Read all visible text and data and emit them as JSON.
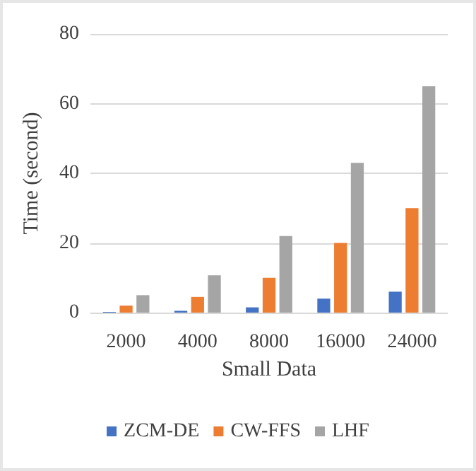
{
  "chart_data": {
    "type": "bar",
    "xlabel": "Small Data",
    "ylabel": "Time (second)",
    "categories": [
      "2000",
      "4000",
      "8000",
      "16000",
      "24000"
    ],
    "series": [
      {
        "name": "ZCM-DE",
        "color": "#4472c4",
        "values": [
          0.2,
          0.5,
          1.5,
          4,
          6
        ]
      },
      {
        "name": "CW-FFS",
        "color": "#ed7d31",
        "values": [
          2,
          4.5,
          10,
          20,
          30
        ]
      },
      {
        "name": "LHF",
        "color": "#a5a5a5",
        "values": [
          5,
          10.7,
          22,
          43,
          65
        ]
      }
    ],
    "ylim": [
      0,
      80
    ],
    "yticks": [
      0,
      20,
      40,
      60,
      80
    ],
    "grid": "y",
    "legend": "bottom"
  }
}
